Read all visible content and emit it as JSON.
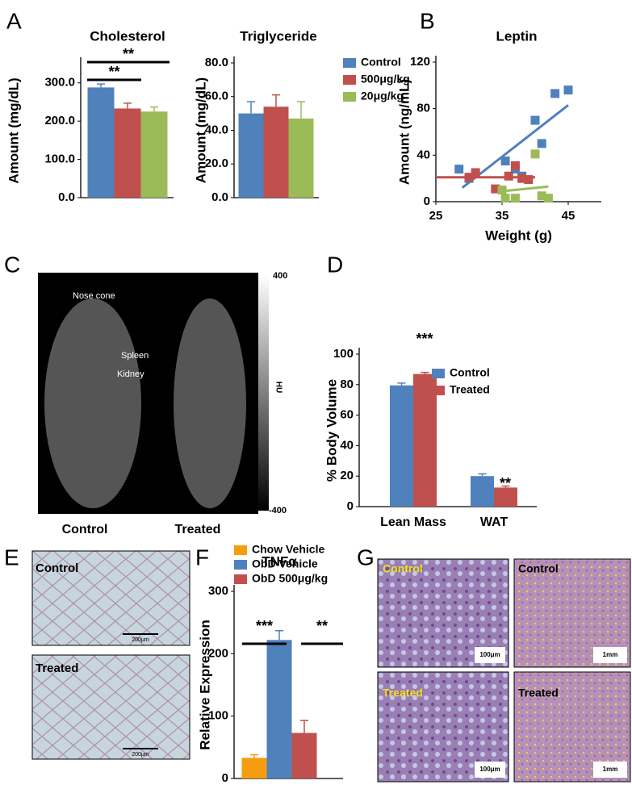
{
  "panel_labels": [
    "A",
    "B",
    "C",
    "D",
    "E",
    "F",
    "G"
  ],
  "chart_data": [
    {
      "type": "bar",
      "title": "Cholesterol",
      "ylabel": "Amount (mg/dL)",
      "values": [
        288,
        233,
        225
      ],
      "errors": [
        9,
        14,
        12
      ],
      "colors": [
        "#4f81bd",
        "#c0504d",
        "#9bbb59"
      ],
      "ylim": [
        0,
        350
      ],
      "yticks": [
        {
          "value": 0,
          "label": "0.0"
        },
        {
          "value": 100,
          "label": "100.0"
        },
        {
          "value": 200,
          "label": "200.0"
        },
        {
          "value": 300,
          "label": "300.0"
        }
      ],
      "annotations": [
        "**",
        "**"
      ]
    },
    {
      "type": "bar",
      "title": "Triglyceride",
      "ylabel": "Amount (mg/dL)",
      "series": [
        {
          "name": "Control",
          "color": "#4f81bd",
          "values": [
            50
          ],
          "errors": [
            7
          ]
        },
        {
          "name": "500μg/kg",
          "color": "#c0504d",
          "values": [
            54
          ],
          "errors": [
            7
          ]
        },
        {
          "name": "20μg/kg",
          "color": "#9bbb59",
          "values": [
            47
          ],
          "errors": [
            10
          ]
        }
      ],
      "ylim": [
        0,
        80
      ],
      "yticks": [
        {
          "value": 0,
          "label": "0.0"
        },
        {
          "value": 20,
          "label": "20.0"
        },
        {
          "value": 40,
          "label": "40.0"
        },
        {
          "value": 60,
          "label": "60.0"
        },
        {
          "value": 80,
          "label": "80.0"
        }
      ],
      "legend": "upper right"
    },
    {
      "type": "scatter",
      "title": "Leptin",
      "xlabel": "Weight (g)",
      "ylabel": "Amount (ng/mL)",
      "xlim": [
        25,
        50
      ],
      "xticks": [
        25,
        35,
        45
      ],
      "ylim": [
        0,
        120
      ],
      "yticks": [
        0,
        40,
        80,
        120
      ],
      "series": [
        {
          "color": "#4f81bd",
          "x": [
            28.5,
            30,
            35.5,
            37,
            38,
            40,
            41,
            43,
            45
          ],
          "y": [
            28,
            20,
            35,
            28,
            22,
            70,
            50,
            93,
            96
          ],
          "trend": {
            "x": [
              29,
              45
            ],
            "y": [
              12,
              83
            ]
          }
        },
        {
          "color": "#c0504d",
          "x": [
            30,
            31,
            34,
            36,
            37,
            38,
            39
          ],
          "y": [
            21,
            25,
            11,
            22,
            31,
            20,
            19
          ],
          "trend": {
            "x": [
              25,
              40
            ],
            "y": [
              21,
              21
            ]
          }
        },
        {
          "color": "#9bbb59",
          "x": [
            35,
            35.5,
            37,
            40,
            41,
            42
          ],
          "y": [
            10,
            3,
            3,
            41,
            5,
            3
          ],
          "trend": {
            "x": [
              35,
              42
            ],
            "y": [
              9,
              13
            ]
          }
        }
      ]
    },
    {
      "type": "bar",
      "ylabel": "% Body Volume",
      "categories": [
        "Lean Mass",
        "WAT"
      ],
      "series": [
        {
          "name": "Control",
          "color": "#4f81bd",
          "values": [
            79.5,
            20
          ],
          "errors": [
            1.5,
            1.5
          ]
        },
        {
          "name": "Treated",
          "color": "#c0504d",
          "values": [
            87,
            12.5
          ],
          "errors": [
            1,
            1
          ]
        }
      ],
      "ylim": [
        0,
        100
      ],
      "yticks": [
        0,
        20,
        40,
        60,
        80,
        100
      ],
      "annotations": [
        "***",
        "**"
      ],
      "legend": "upper right"
    },
    {
      "type": "bar",
      "title": "TNFα",
      "ylabel": "Relative Expression",
      "series": [
        {
          "name": "Chow Vehicle",
          "color": "#f59d0f",
          "values": [
            33
          ],
          "errors": [
            5
          ]
        },
        {
          "name": "ObD Vehicle",
          "color": "#4f81bd",
          "values": [
            222
          ],
          "errors": [
            15
          ]
        },
        {
          "name": "ObD 500μg/kg",
          "color": "#c0504d",
          "values": [
            73
          ],
          "errors": [
            20
          ]
        }
      ],
      "ylim": [
        0,
        300
      ],
      "yticks": [
        0,
        100,
        200,
        300
      ],
      "annotations": [
        "***",
        "**"
      ],
      "legend": "top"
    }
  ],
  "ct_image": {
    "labels": [
      "Nose cone",
      "Spleen",
      "Kidney"
    ],
    "colorbar_max": "400",
    "colorbar_min": "-400",
    "unit": "HU",
    "captions": [
      "Control",
      "Treated"
    ]
  },
  "histology_e": {
    "labels": [
      "Control",
      "Treated"
    ],
    "scale": "200μm"
  },
  "histology_g": {
    "labels": [
      "Control",
      "Control",
      "Treated",
      "Treated"
    ],
    "scales": [
      "100μm",
      "1mm",
      "100μm",
      "1mm"
    ]
  }
}
